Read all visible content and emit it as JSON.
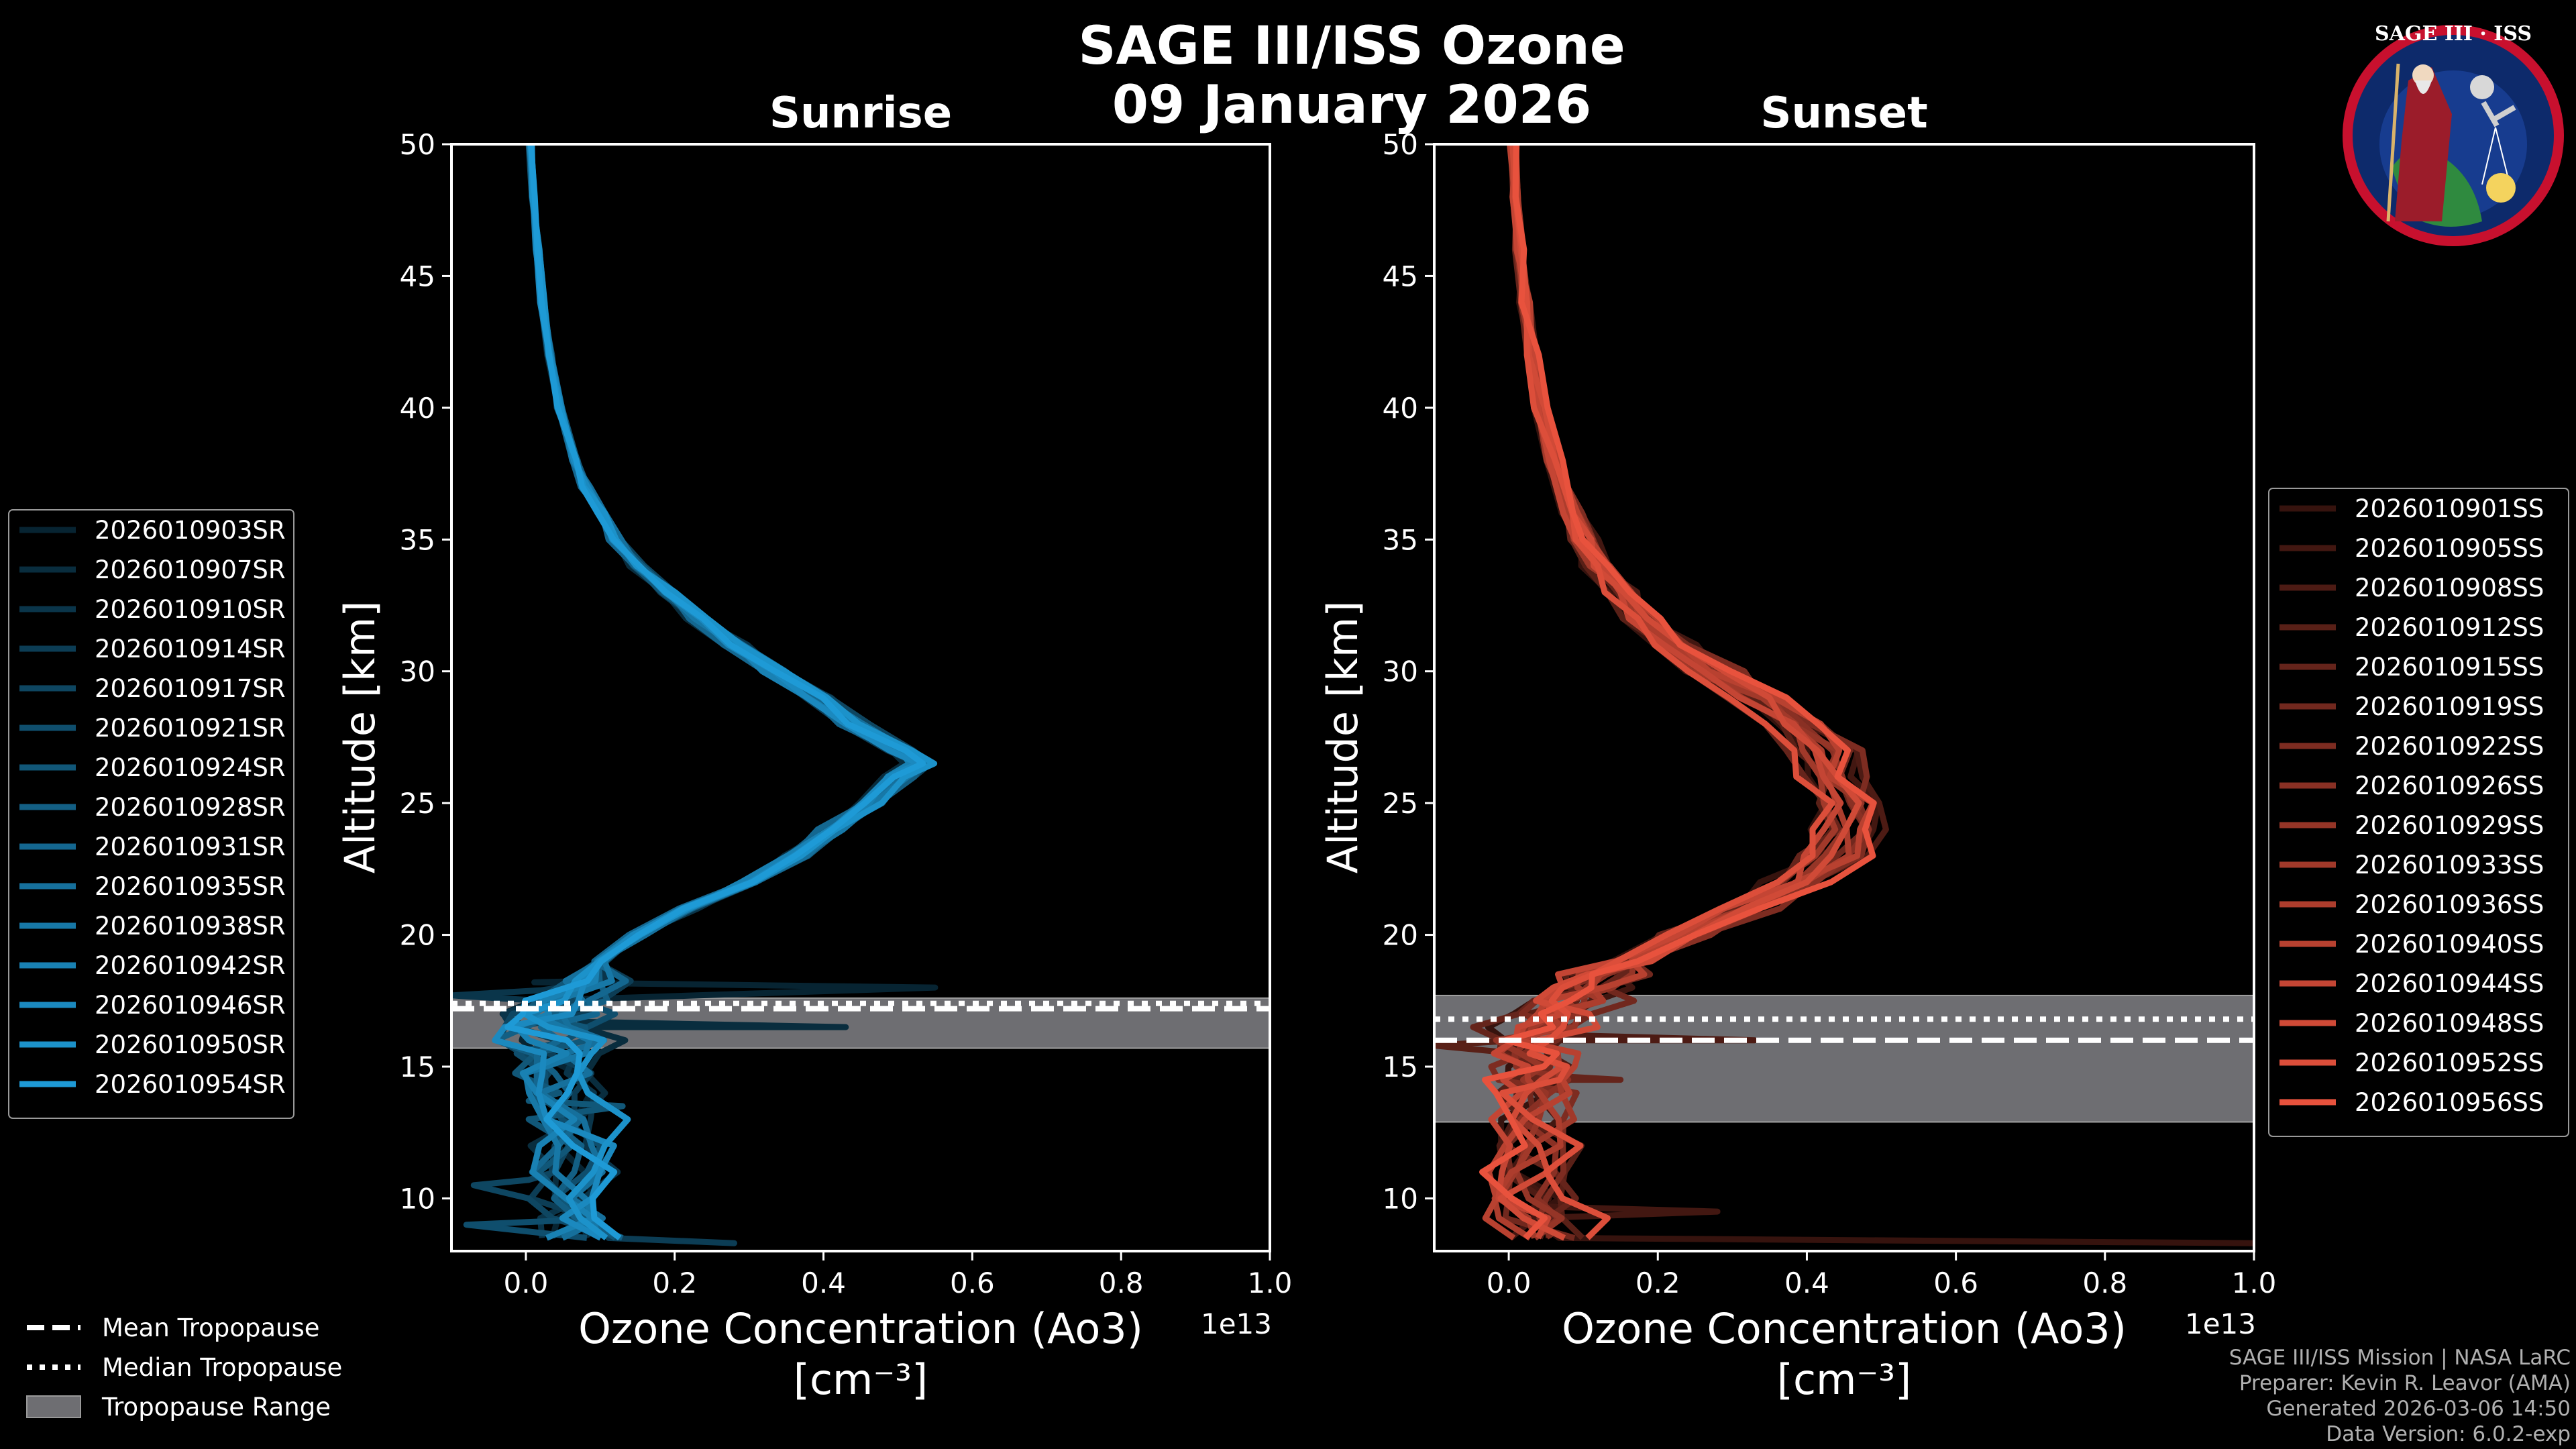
{
  "figure": {
    "title_line1": "SAGE III/ISS Ozone",
    "title_line2": "09 January 2026",
    "logo_text": "SAGE III · ISS",
    "credits": [
      "SAGE III/ISS Mission | NASA LaRC",
      "Preparer: Kevin R. Leavor (AMA)",
      "Generated 2026-03-06 14:50",
      "Data Version: 6.0.2-exp"
    ],
    "tropopause_legend": [
      {
        "label": "Mean Tropopause",
        "style": "dashed"
      },
      {
        "label": "Median Tropopause",
        "style": "dotted"
      },
      {
        "label": "Tropopause Range",
        "style": "band"
      }
    ],
    "colors": {
      "sunrise": "#1e9ad6",
      "sunset": "#e8523d",
      "band": "#6e6e72",
      "background": "#000000"
    }
  },
  "chart_data": [
    {
      "type": "line",
      "title": "Sunrise",
      "xlabel": "Ozone Concentration (Ao3)",
      "xunits": "[cm⁻³]",
      "ylabel": "Altitude [km]",
      "x_scale_label": "1e13",
      "xlim": [
        -0.1,
        1.0
      ],
      "ylim": [
        8,
        50
      ],
      "xticks": [
        0.0,
        0.2,
        0.4,
        0.6,
        0.8,
        1.0
      ],
      "xtick_labels": [
        "0.0",
        "0.2",
        "0.4",
        "0.6",
        "0.8",
        "1.0"
      ],
      "yticks": [
        10,
        15,
        20,
        25,
        30,
        35,
        40,
        45,
        50
      ],
      "tropopause": {
        "mean": 17.2,
        "median": 17.4,
        "min": 15.7,
        "max": 17.6
      },
      "series_names": [
        "2026010903SR",
        "2026010907SR",
        "2026010910SR",
        "2026010914SR",
        "2026010917SR",
        "2026010921SR",
        "2026010924SR",
        "2026010928SR",
        "2026010931SR",
        "2026010935SR",
        "2026010938SR",
        "2026010942SR",
        "2026010946SR",
        "2026010950SR",
        "2026010954SR"
      ],
      "mean_profile": [
        [
          8.5,
          0.07
        ],
        [
          10,
          0.06
        ],
        [
          12,
          0.06
        ],
        [
          14,
          0.05
        ],
        [
          15.5,
          0.04
        ],
        [
          16.5,
          0.03
        ],
        [
          17.5,
          0.05
        ],
        [
          19,
          0.1
        ],
        [
          20,
          0.15
        ],
        [
          21,
          0.22
        ],
        [
          22,
          0.3
        ],
        [
          23,
          0.36
        ],
        [
          24,
          0.41
        ],
        [
          25,
          0.46
        ],
        [
          26,
          0.5
        ],
        [
          26.5,
          0.53
        ],
        [
          27,
          0.5
        ],
        [
          28,
          0.44
        ],
        [
          29,
          0.39
        ],
        [
          30,
          0.33
        ],
        [
          31,
          0.28
        ],
        [
          32,
          0.23
        ],
        [
          33,
          0.19
        ],
        [
          34,
          0.15
        ],
        [
          35,
          0.12
        ],
        [
          36,
          0.1
        ],
        [
          37,
          0.08
        ],
        [
          38,
          0.065
        ],
        [
          40,
          0.045
        ],
        [
          42,
          0.032
        ],
        [
          44,
          0.022
        ],
        [
          46,
          0.016
        ],
        [
          48,
          0.01
        ],
        [
          50,
          0.006
        ]
      ],
      "noise_below_km": 17.8,
      "spikes": [
        {
          "km": 18.0,
          "x": 0.55
        },
        {
          "km": 16.5,
          "x": 0.43
        },
        {
          "km": 17.7,
          "x": -0.1
        },
        {
          "km": 8.3,
          "x": 0.28
        },
        {
          "km": 10.5,
          "x": -0.07
        },
        {
          "km": 9.0,
          "x": -0.08
        },
        {
          "km": 13.5,
          "x": 0.13
        }
      ]
    },
    {
      "type": "line",
      "title": "Sunset",
      "xlabel": "Ozone Concentration (Ao3)",
      "xunits": "[cm⁻³]",
      "ylabel": "Altitude [km]",
      "x_scale_label": "1e13",
      "xlim": [
        -0.1,
        1.0
      ],
      "ylim": [
        8,
        50
      ],
      "xticks": [
        0.0,
        0.2,
        0.4,
        0.6,
        0.8,
        1.0
      ],
      "xtick_labels": [
        "0.0",
        "0.2",
        "0.4",
        "0.6",
        "0.8",
        "1.0"
      ],
      "yticks": [
        10,
        15,
        20,
        25,
        30,
        35,
        40,
        45,
        50
      ],
      "tropopause": {
        "mean": 16.0,
        "median": 16.8,
        "min": 12.9,
        "max": 17.7
      },
      "series_names": [
        "2026010901SS",
        "2026010905SS",
        "2026010908SS",
        "2026010912SS",
        "2026010915SS",
        "2026010919SS",
        "2026010922SS",
        "2026010926SS",
        "2026010929SS",
        "2026010933SS",
        "2026010936SS",
        "2026010940SS",
        "2026010944SS",
        "2026010948SS",
        "2026010952SS",
        "2026010956SS"
      ],
      "mean_profile": [
        [
          8.5,
          0.05
        ],
        [
          10,
          0.04
        ],
        [
          12,
          0.04
        ],
        [
          14,
          0.04
        ],
        [
          15,
          0.03
        ],
        [
          16,
          0.04
        ],
        [
          17,
          0.07
        ],
        [
          18,
          0.11
        ],
        [
          19,
          0.17
        ],
        [
          20,
          0.24
        ],
        [
          21,
          0.32
        ],
        [
          22,
          0.39
        ],
        [
          23,
          0.44
        ],
        [
          24,
          0.46
        ],
        [
          25,
          0.45
        ],
        [
          26,
          0.43
        ],
        [
          27,
          0.42
        ],
        [
          28,
          0.38
        ],
        [
          29,
          0.33
        ],
        [
          30,
          0.27
        ],
        [
          31,
          0.22
        ],
        [
          32,
          0.18
        ],
        [
          33,
          0.15
        ],
        [
          34,
          0.12
        ],
        [
          35,
          0.1
        ],
        [
          36,
          0.085
        ],
        [
          38,
          0.062
        ],
        [
          40,
          0.045
        ],
        [
          42,
          0.032
        ],
        [
          44,
          0.022
        ],
        [
          46,
          0.015
        ],
        [
          48,
          0.01
        ],
        [
          50,
          0.006
        ]
      ],
      "noise_below_km": 19.0,
      "spikes": [
        {
          "km": 8.3,
          "x": 1.0
        },
        {
          "km": 9.5,
          "x": 0.28
        },
        {
          "km": 16.0,
          "x": 0.33
        },
        {
          "km": 15.8,
          "x": -0.1
        },
        {
          "km": 14.5,
          "x": 0.15
        }
      ]
    }
  ]
}
